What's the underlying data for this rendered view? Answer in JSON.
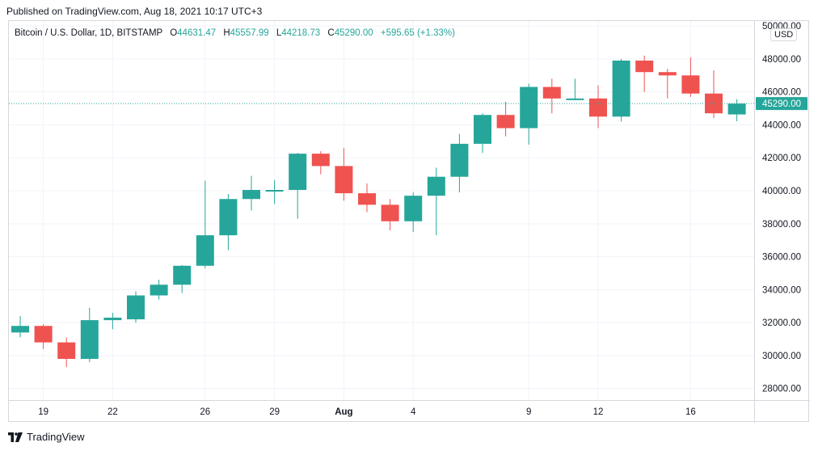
{
  "header": {
    "published": "Published on TradingView.com, Aug 18, 2021 10:17 UTC+3"
  },
  "legend": {
    "symbol": "Bitcoin / U.S. Dollar, 1D, BITSTAMP",
    "o_label": "O",
    "o_value": "44631.47",
    "h_label": "H",
    "h_value": "45557.99",
    "l_label": "L",
    "l_value": "44218.73",
    "c_label": "C",
    "c_value": "45290.00",
    "change": "+595.65 (+1.33%)"
  },
  "currency": "USD",
  "footer": {
    "brand": "TradingView"
  },
  "colors": {
    "up": "#26a69a",
    "down": "#ef5350",
    "grid": "#f0f3fa",
    "price_line": "#26a69a"
  },
  "chart_data": {
    "type": "candlestick",
    "ylim": [
      27300,
      50300
    ],
    "yticks": [
      28000,
      30000,
      32000,
      34000,
      36000,
      38000,
      40000,
      42000,
      44000,
      46000,
      48000,
      50000
    ],
    "ytick_labels": [
      "28000.00",
      "30000.00",
      "32000.00",
      "34000.00",
      "36000.00",
      "38000.00",
      "40000.00",
      "42000.00",
      "44000.00",
      "46000.00",
      "48000.00",
      "50000.00"
    ],
    "x_labels": [
      {
        "label": "19",
        "index": 1
      },
      {
        "label": "22",
        "index": 4
      },
      {
        "label": "26",
        "index": 8
      },
      {
        "label": "29",
        "index": 11
      },
      {
        "label": "Aug",
        "index": 14
      },
      {
        "label": "4",
        "index": 17
      },
      {
        "label": "9",
        "index": 22
      },
      {
        "label": "12",
        "index": 25
      },
      {
        "label": "16",
        "index": 29
      }
    ],
    "last_price": 45290,
    "last_price_label": "45290.00",
    "candles": [
      {
        "o": 31400,
        "h": 32400,
        "l": 31100,
        "c": 31800
      },
      {
        "o": 31800,
        "h": 31900,
        "l": 30400,
        "c": 30800
      },
      {
        "o": 30800,
        "h": 31100,
        "l": 29300,
        "c": 29800
      },
      {
        "o": 29800,
        "h": 32900,
        "l": 29600,
        "c": 32150
      },
      {
        "o": 32150,
        "h": 32600,
        "l": 31600,
        "c": 32300
      },
      {
        "o": 32200,
        "h": 33900,
        "l": 32000,
        "c": 33650
      },
      {
        "o": 33650,
        "h": 34600,
        "l": 33400,
        "c": 34300
      },
      {
        "o": 34300,
        "h": 35500,
        "l": 33800,
        "c": 35450
      },
      {
        "o": 35450,
        "h": 40600,
        "l": 35300,
        "c": 37300
      },
      {
        "o": 37300,
        "h": 39800,
        "l": 36400,
        "c": 39500
      },
      {
        "o": 39500,
        "h": 40900,
        "l": 38800,
        "c": 40050
      },
      {
        "o": 40050,
        "h": 40650,
        "l": 39200,
        "c": 40050
      },
      {
        "o": 40050,
        "h": 42300,
        "l": 38300,
        "c": 42250
      },
      {
        "o": 42250,
        "h": 42400,
        "l": 41000,
        "c": 41500
      },
      {
        "o": 41500,
        "h": 42600,
        "l": 39400,
        "c": 39850
      },
      {
        "o": 39850,
        "h": 40450,
        "l": 38700,
        "c": 39150
      },
      {
        "o": 39150,
        "h": 39500,
        "l": 37600,
        "c": 38150
      },
      {
        "o": 38150,
        "h": 39900,
        "l": 37500,
        "c": 39700
      },
      {
        "o": 39700,
        "h": 41400,
        "l": 37300,
        "c": 40850
      },
      {
        "o": 40850,
        "h": 43450,
        "l": 39900,
        "c": 42850
      },
      {
        "o": 42850,
        "h": 44700,
        "l": 42300,
        "c": 44600
      },
      {
        "o": 44600,
        "h": 45400,
        "l": 43300,
        "c": 43800
      },
      {
        "o": 43800,
        "h": 46500,
        "l": 42800,
        "c": 46300
      },
      {
        "o": 46300,
        "h": 46800,
        "l": 44700,
        "c": 45600
      },
      {
        "o": 45600,
        "h": 46800,
        "l": 45500,
        "c": 45600
      },
      {
        "o": 45600,
        "h": 46400,
        "l": 43800,
        "c": 44500
      },
      {
        "o": 44500,
        "h": 48000,
        "l": 44200,
        "c": 47900
      },
      {
        "o": 47900,
        "h": 48200,
        "l": 46000,
        "c": 47200
      },
      {
        "o": 47200,
        "h": 47400,
        "l": 45600,
        "c": 47000
      },
      {
        "o": 47000,
        "h": 48100,
        "l": 45700,
        "c": 45900
      },
      {
        "o": 45900,
        "h": 47300,
        "l": 44400,
        "c": 44700
      },
      {
        "o": 44631,
        "h": 45558,
        "l": 44219,
        "c": 45290
      }
    ]
  }
}
